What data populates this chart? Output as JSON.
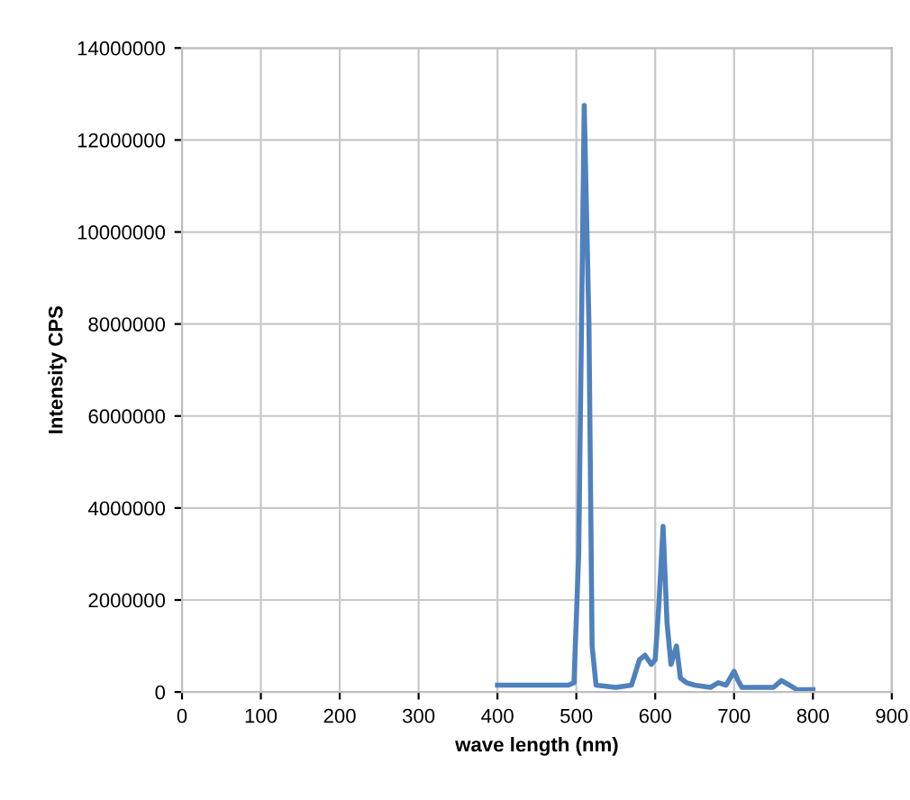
{
  "chart_data": {
    "type": "line",
    "xlabel": "wave length (nm)",
    "ylabel": "Intensity CPS",
    "series": [
      {
        "color": "#4f81bd",
        "x": [
          400,
          450,
          490,
          497,
          503,
          510,
          516,
          520,
          525,
          550,
          570,
          580,
          587,
          595,
          600,
          605,
          610,
          615,
          620,
          627,
          632,
          640,
          650,
          670,
          680,
          690,
          700,
          705,
          710,
          750,
          760,
          770,
          780,
          800
        ],
        "values": [
          150000,
          150000,
          150000,
          200000,
          3000000,
          12750000,
          8000000,
          1000000,
          150000,
          100000,
          150000,
          700000,
          800000,
          600000,
          700000,
          2000000,
          3600000,
          1500000,
          600000,
          1000000,
          300000,
          200000,
          150000,
          100000,
          200000,
          150000,
          450000,
          250000,
          100000,
          100000,
          250000,
          150000,
          50000,
          50000
        ]
      }
    ],
    "xlim": [
      0,
      900
    ],
    "xticks": [
      0,
      100,
      200,
      300,
      400,
      500,
      600,
      700,
      800,
      900
    ],
    "ylim": [
      0,
      14000000
    ],
    "yticks": [
      0,
      2000000,
      4000000,
      6000000,
      8000000,
      10000000,
      12000000,
      14000000
    ],
    "grid": true,
    "legend": false,
    "marker": "none",
    "line_style": "solid"
  }
}
